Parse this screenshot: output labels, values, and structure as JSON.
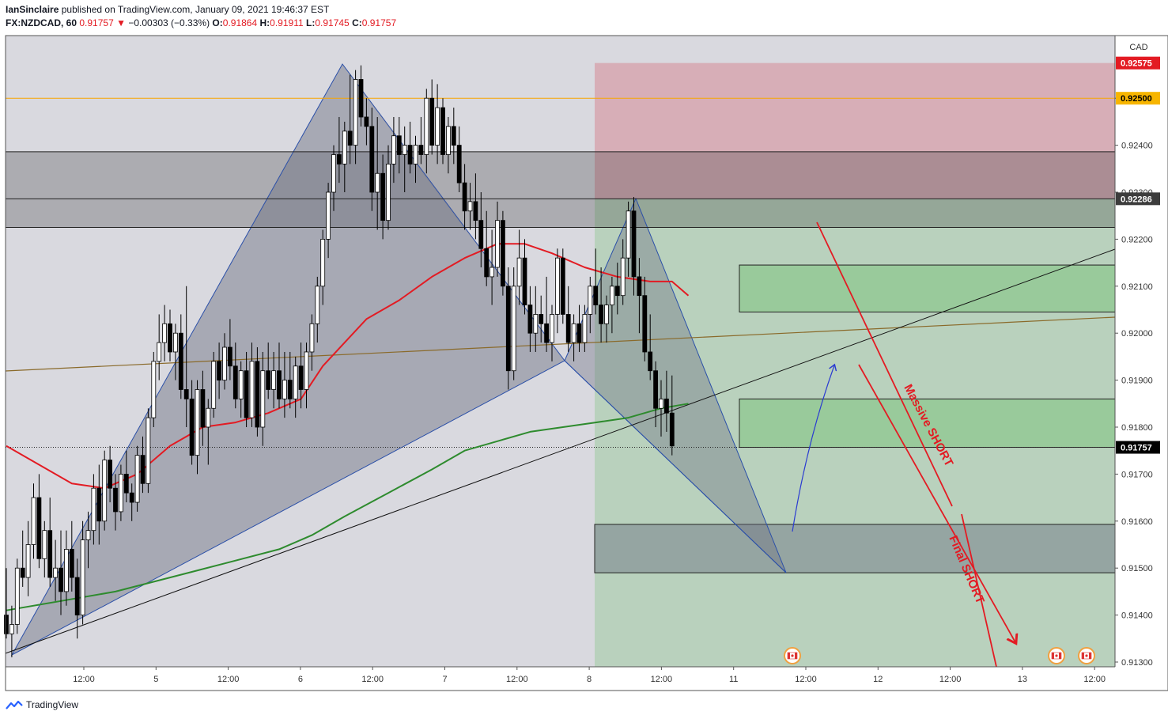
{
  "header": {
    "publisher": "IanSinclaire",
    "published_text": "published on TradingView.com, January 09, 2021 19:46:37 EST",
    "symbol": "FX:NZDCAD, 60",
    "last": "0.91757",
    "change": "−0.00303 (−0.33%)",
    "o_label": "O:",
    "o": "0.91864",
    "h_label": "H:",
    "h": "0.91911",
    "l_label": "L:",
    "l": "0.91745",
    "c_label": "C:",
    "c": "0.91757"
  },
  "footer": {
    "brand": "TradingView"
  },
  "colors": {
    "up_candle": "#ffffff",
    "down_candle": "#000000",
    "ma_fast": "#e31b23",
    "ma_slow": "#2e8b2e",
    "stop_zone": "#d68a96",
    "target_zone": "#7fc47f",
    "pattern_fill": "#6b6e80",
    "annotation": "#e31b23",
    "arrow": "#2a3bd1",
    "price_label_red": "#e31b23",
    "price_label_orange": "#f7b500"
  },
  "chart_data": {
    "type": "candlestick",
    "symbol": "FX:NZDCAD",
    "interval": "60",
    "yaxis": {
      "currency": "CAD",
      "ylim": [
        0.9128,
        0.9266
      ],
      "ticks": [
        "0.91300",
        "0.91400",
        "0.91500",
        "0.91600",
        "0.91700",
        "0.91800",
        "0.91900",
        "0.92000",
        "0.92100",
        "0.92200",
        "0.92300",
        "0.92400",
        "0.92500"
      ]
    },
    "xaxis": {
      "ticks": [
        "12:00",
        "5",
        "12:00",
        "6",
        "12:00",
        "7",
        "12:00",
        "8",
        "12:00",
        "11",
        "12:00",
        "12",
        "12:00",
        "13",
        "12:00"
      ]
    },
    "price_labels": [
      {
        "value": "0.92575",
        "style": "red"
      },
      {
        "value": "0.92500",
        "style": "orange"
      },
      {
        "value": "0.92286",
        "style": "dark"
      },
      {
        "value": "0.91757",
        "style": "black"
      }
    ],
    "candles": [
      [
        0.914,
        0.915,
        0.9135,
        0.9136
      ],
      [
        0.9136,
        0.9142,
        0.9131,
        0.9138
      ],
      [
        0.9138,
        0.9152,
        0.9136,
        0.915
      ],
      [
        0.915,
        0.9158,
        0.9146,
        0.9148
      ],
      [
        0.9148,
        0.916,
        0.9144,
        0.9155
      ],
      [
        0.9155,
        0.9168,
        0.9152,
        0.9165
      ],
      [
        0.9165,
        0.917,
        0.915,
        0.9152
      ],
      [
        0.9152,
        0.916,
        0.9148,
        0.9158
      ],
      [
        0.9158,
        0.9165,
        0.9146,
        0.9148
      ],
      [
        0.9148,
        0.9156,
        0.9143,
        0.915
      ],
      [
        0.915,
        0.9158,
        0.914,
        0.9145
      ],
      [
        0.9145,
        0.9158,
        0.9142,
        0.9154
      ],
      [
        0.9154,
        0.916,
        0.9145,
        0.9148
      ],
      [
        0.9148,
        0.9152,
        0.9135,
        0.914
      ],
      [
        0.914,
        0.916,
        0.9138,
        0.9156
      ],
      [
        0.9156,
        0.9162,
        0.915,
        0.9158
      ],
      [
        0.9158,
        0.917,
        0.9155,
        0.9167
      ],
      [
        0.9167,
        0.9172,
        0.9155,
        0.916
      ],
      [
        0.916,
        0.9175,
        0.9158,
        0.9173
      ],
      [
        0.9173,
        0.9176,
        0.9164,
        0.9167
      ],
      [
        0.9167,
        0.917,
        0.9158,
        0.9162
      ],
      [
        0.9162,
        0.9172,
        0.916,
        0.917
      ],
      [
        0.917,
        0.9175,
        0.9164,
        0.9166
      ],
      [
        0.9166,
        0.9168,
        0.916,
        0.9164
      ],
      [
        0.9164,
        0.9176,
        0.9162,
        0.9174
      ],
      [
        0.9174,
        0.9178,
        0.9166,
        0.9168
      ],
      [
        0.9168,
        0.9184,
        0.9166,
        0.9182
      ],
      [
        0.9182,
        0.9196,
        0.918,
        0.9194
      ],
      [
        0.9194,
        0.9204,
        0.919,
        0.9198
      ],
      [
        0.9198,
        0.9206,
        0.9194,
        0.9202
      ],
      [
        0.9202,
        0.9205,
        0.9194,
        0.9196
      ],
      [
        0.9196,
        0.9202,
        0.919,
        0.92
      ],
      [
        0.92,
        0.9204,
        0.9186,
        0.9188
      ],
      [
        0.9188,
        0.921,
        0.918,
        0.9186
      ],
      [
        0.9186,
        0.919,
        0.9172,
        0.9174
      ],
      [
        0.9174,
        0.919,
        0.917,
        0.9188
      ],
      [
        0.9188,
        0.9192,
        0.9176,
        0.918
      ],
      [
        0.918,
        0.9186,
        0.9172,
        0.9184
      ],
      [
        0.9184,
        0.9196,
        0.9182,
        0.9194
      ],
      [
        0.9194,
        0.9198,
        0.9186,
        0.919
      ],
      [
        0.919,
        0.92,
        0.9188,
        0.9197
      ],
      [
        0.9197,
        0.9203,
        0.919,
        0.9193
      ],
      [
        0.9193,
        0.9198,
        0.9184,
        0.9186
      ],
      [
        0.9186,
        0.9194,
        0.9182,
        0.9192
      ],
      [
        0.9192,
        0.9196,
        0.918,
        0.9182
      ],
      [
        0.9182,
        0.9198,
        0.918,
        0.9194
      ],
      [
        0.9194,
        0.9197,
        0.9178,
        0.918
      ],
      [
        0.918,
        0.9196,
        0.9176,
        0.9192
      ],
      [
        0.9192,
        0.9198,
        0.9186,
        0.9188
      ],
      [
        0.9188,
        0.9196,
        0.9184,
        0.9192
      ],
      [
        0.9192,
        0.9198,
        0.9184,
        0.9186
      ],
      [
        0.9186,
        0.9196,
        0.9182,
        0.919
      ],
      [
        0.919,
        0.9196,
        0.9184,
        0.9186
      ],
      [
        0.9186,
        0.9195,
        0.9182,
        0.9193
      ],
      [
        0.9193,
        0.9198,
        0.9184,
        0.9188
      ],
      [
        0.9188,
        0.9198,
        0.9184,
        0.9196
      ],
      [
        0.9196,
        0.9204,
        0.9192,
        0.9202
      ],
      [
        0.9202,
        0.9212,
        0.9198,
        0.921
      ],
      [
        0.921,
        0.9222,
        0.9206,
        0.922
      ],
      [
        0.922,
        0.9232,
        0.9216,
        0.923
      ],
      [
        0.923,
        0.924,
        0.9226,
        0.9238
      ],
      [
        0.9238,
        0.9246,
        0.9232,
        0.9236
      ],
      [
        0.9236,
        0.9245,
        0.923,
        0.9243
      ],
      [
        0.9243,
        0.9255,
        0.9236,
        0.924
      ],
      [
        0.924,
        0.9256,
        0.9236,
        0.9254
      ],
      [
        0.9254,
        0.9257,
        0.9244,
        0.9246
      ],
      [
        0.9246,
        0.925,
        0.924,
        0.9244
      ],
      [
        0.9244,
        0.9248,
        0.9226,
        0.923
      ],
      [
        0.923,
        0.9246,
        0.9222,
        0.9234
      ],
      [
        0.9234,
        0.9238,
        0.922,
        0.9224
      ],
      [
        0.9224,
        0.924,
        0.9222,
        0.9236
      ],
      [
        0.9236,
        0.9246,
        0.9232,
        0.9242
      ],
      [
        0.9242,
        0.9246,
        0.9234,
        0.9238
      ],
      [
        0.9238,
        0.9244,
        0.923,
        0.924
      ],
      [
        0.924,
        0.9245,
        0.9234,
        0.9236
      ],
      [
        0.9236,
        0.9242,
        0.9232,
        0.924
      ],
      [
        0.924,
        0.9246,
        0.9236,
        0.9238
      ],
      [
        0.9238,
        0.9252,
        0.9234,
        0.925
      ],
      [
        0.925,
        0.9254,
        0.9238,
        0.924
      ],
      [
        0.924,
        0.9253,
        0.9236,
        0.9248
      ],
      [
        0.9248,
        0.925,
        0.9236,
        0.9238
      ],
      [
        0.9238,
        0.9246,
        0.9234,
        0.9244
      ],
      [
        0.9244,
        0.9248,
        0.9236,
        0.924
      ],
      [
        0.924,
        0.9244,
        0.923,
        0.9232
      ],
      [
        0.9232,
        0.9236,
        0.9222,
        0.9226
      ],
      [
        0.9226,
        0.9232,
        0.9222,
        0.9228
      ],
      [
        0.9228,
        0.9234,
        0.922,
        0.9224
      ],
      [
        0.9224,
        0.923,
        0.9214,
        0.9218
      ],
      [
        0.9218,
        0.9226,
        0.921,
        0.9212
      ],
      [
        0.9212,
        0.9222,
        0.9206,
        0.9214
      ],
      [
        0.9214,
        0.9228,
        0.9212,
        0.9224
      ],
      [
        0.9224,
        0.9226,
        0.9208,
        0.921
      ],
      [
        0.921,
        0.9214,
        0.9188,
        0.9192
      ],
      [
        0.9192,
        0.9214,
        0.919,
        0.921
      ],
      [
        0.921,
        0.9222,
        0.9206,
        0.9216
      ],
      [
        0.9216,
        0.922,
        0.9204,
        0.9206
      ],
      [
        0.9206,
        0.921,
        0.9196,
        0.92
      ],
      [
        0.92,
        0.921,
        0.9196,
        0.9204
      ],
      [
        0.9204,
        0.9208,
        0.9198,
        0.9202
      ],
      [
        0.9202,
        0.9212,
        0.9196,
        0.9198
      ],
      [
        0.9198,
        0.9206,
        0.9194,
        0.9204
      ],
      [
        0.9204,
        0.9218,
        0.92,
        0.9216
      ],
      [
        0.9216,
        0.9218,
        0.9202,
        0.9204
      ],
      [
        0.9204,
        0.921,
        0.9196,
        0.9198
      ],
      [
        0.9198,
        0.9204,
        0.9194,
        0.9202
      ],
      [
        0.9202,
        0.9206,
        0.9196,
        0.9198
      ],
      [
        0.9198,
        0.9206,
        0.9196,
        0.9204
      ],
      [
        0.9204,
        0.9212,
        0.92,
        0.921
      ],
      [
        0.921,
        0.9218,
        0.9204,
        0.9206
      ],
      [
        0.9206,
        0.9214,
        0.9198,
        0.9202
      ],
      [
        0.9202,
        0.9208,
        0.9198,
        0.9206
      ],
      [
        0.9206,
        0.9212,
        0.92,
        0.921
      ],
      [
        0.921,
        0.9215,
        0.9204,
        0.9208
      ],
      [
        0.9208,
        0.922,
        0.9206,
        0.9216
      ],
      [
        0.9216,
        0.9228,
        0.9212,
        0.9226
      ],
      [
        0.9226,
        0.9229,
        0.9208,
        0.9212
      ],
      [
        0.9212,
        0.9216,
        0.92,
        0.9208
      ],
      [
        0.9208,
        0.9212,
        0.9194,
        0.9196
      ],
      [
        0.9196,
        0.9204,
        0.919,
        0.9192
      ],
      [
        0.9192,
        0.9194,
        0.918,
        0.9184
      ],
      [
        0.9184,
        0.919,
        0.9178,
        0.9186
      ],
      [
        0.9186,
        0.9192,
        0.9179,
        0.9183
      ],
      [
        0.9183,
        0.9191,
        0.9174,
        0.9176
      ]
    ],
    "moving_averages": [
      {
        "color": "ma_fast",
        "points": [
          [
            0,
            0.9176
          ],
          [
            6,
            0.9172
          ],
          [
            12,
            0.9168
          ],
          [
            18,
            0.9167
          ],
          [
            24,
            0.917
          ],
          [
            30,
            0.9176
          ],
          [
            36,
            0.918
          ],
          [
            42,
            0.9181
          ],
          [
            48,
            0.9183
          ],
          [
            54,
            0.9186
          ],
          [
            58,
            0.9193
          ],
          [
            62,
            0.9198
          ],
          [
            66,
            0.9203
          ],
          [
            72,
            0.9207
          ],
          [
            78,
            0.9212
          ],
          [
            84,
            0.9216
          ],
          [
            90,
            0.9219
          ],
          [
            95,
            0.9219
          ],
          [
            100,
            0.9217
          ],
          [
            106,
            0.9214
          ],
          [
            112,
            0.9212
          ],
          [
            118,
            0.9211
          ],
          [
            122,
            0.9211
          ],
          [
            125,
            0.9208
          ]
        ]
      },
      {
        "color": "ma_slow",
        "points": [
          [
            0,
            0.9141
          ],
          [
            10,
            0.9143
          ],
          [
            20,
            0.9145
          ],
          [
            30,
            0.9148
          ],
          [
            40,
            0.9151
          ],
          [
            50,
            0.9154
          ],
          [
            56,
            0.9157
          ],
          [
            62,
            0.9161
          ],
          [
            70,
            0.9166
          ],
          [
            78,
            0.9171
          ],
          [
            84,
            0.9175
          ],
          [
            90,
            0.9177
          ],
          [
            96,
            0.9179
          ],
          [
            102,
            0.918
          ],
          [
            108,
            0.9181
          ],
          [
            114,
            0.9182
          ],
          [
            120,
            0.9184
          ],
          [
            125,
            0.9185
          ]
        ]
      }
    ],
    "horizontal_lines": [
      {
        "value": 0.925,
        "color": "#f7a600"
      },
      {
        "value": 0.92386
      },
      {
        "value": 0.92286
      },
      {
        "value": 0.92225
      }
    ],
    "zones": [
      {
        "kind": "stop",
        "from": 0.92286,
        "to": 0.92575
      },
      {
        "kind": "target",
        "from": 0.913,
        "to": 0.92286
      },
      {
        "kind": "resistance_band",
        "from": 0.92225,
        "to": 0.92386
      },
      {
        "kind": "box",
        "from": 0.92045,
        "to": 0.92145
      },
      {
        "kind": "box",
        "from": 0.91757,
        "to": 0.9186
      },
      {
        "kind": "box",
        "from": 0.9149,
        "to": 0.91593
      }
    ],
    "annotations": [
      {
        "text": "Massive SHORT",
        "color": "annotation"
      },
      {
        "text": "Final SHORT",
        "color": "annotation"
      }
    ]
  }
}
